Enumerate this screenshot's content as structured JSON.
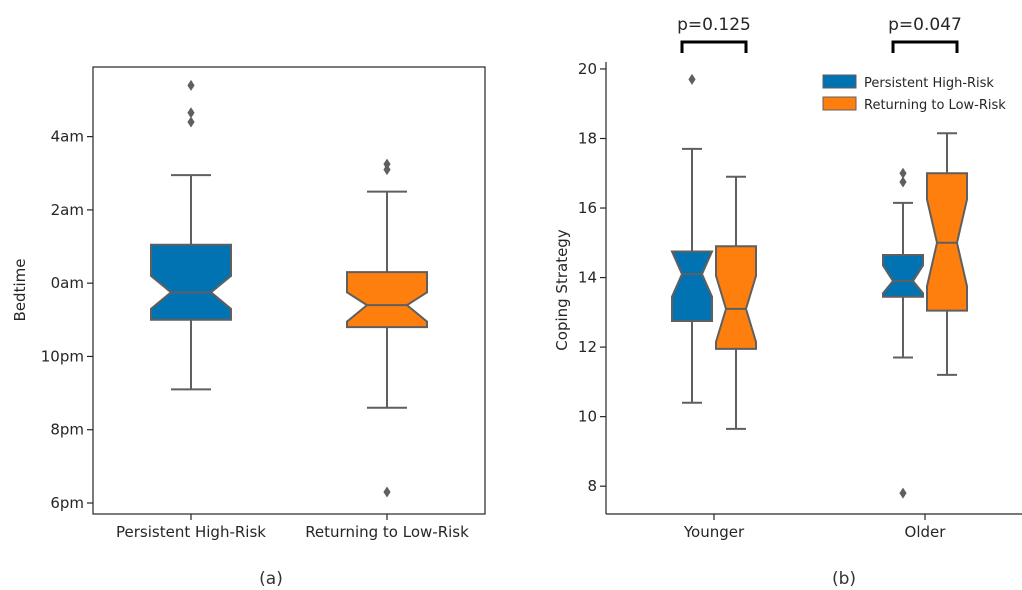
{
  "figure": {
    "captions": [
      "(a)",
      "(b)"
    ]
  },
  "colors": {
    "persistent_high_risk": "#0173b2",
    "returning_to_low_risk": "#ff7f0e",
    "edge": "#5f5f5f",
    "axis": "#262626"
  },
  "chart_data": [
    {
      "type": "box",
      "panel": "(a)",
      "notched": true,
      "xlabel": "",
      "ylabel": "Bedtime",
      "categories": [
        "Persistent High-Risk",
        "Returning to Low-Risk"
      ],
      "y_unit": "hours relative to midnight",
      "ylim": [
        -6.3,
        5.9
      ],
      "yticks": [
        {
          "value": -6,
          "label": "6pm"
        },
        {
          "value": -4,
          "label": "8pm"
        },
        {
          "value": -2,
          "label": "10pm"
        },
        {
          "value": 0,
          "label": "0am"
        },
        {
          "value": 2,
          "label": "2am"
        },
        {
          "value": 4,
          "label": "4am"
        }
      ],
      "boxes": [
        {
          "category": "Persistent High-Risk",
          "whisker_low": -2.9,
          "q1": -1.0,
          "notch_low": -0.7,
          "median": -0.25,
          "notch_high": 0.2,
          "q3": 1.05,
          "whisker_high": 2.95,
          "outliers": [
            4.4,
            4.65,
            5.4
          ]
        },
        {
          "category": "Returning to Low-Risk",
          "whisker_low": -3.4,
          "q1": -1.2,
          "notch_low": -1.05,
          "median": -0.6,
          "notch_high": -0.25,
          "q3": 0.3,
          "whisker_high": 2.5,
          "outliers": [
            -5.7,
            3.1,
            3.25
          ]
        }
      ]
    },
    {
      "type": "box",
      "panel": "(b)",
      "notched": true,
      "xlabel": "",
      "ylabel": "Coping Strategy",
      "categories": [
        "Younger",
        "Older"
      ],
      "ylim": [
        7.2,
        20.2
      ],
      "yticks": [
        {
          "value": 8,
          "label": "8"
        },
        {
          "value": 10,
          "label": "10"
        },
        {
          "value": 12,
          "label": "12"
        },
        {
          "value": 14,
          "label": "14"
        },
        {
          "value": 16,
          "label": "16"
        },
        {
          "value": 18,
          "label": "18"
        },
        {
          "value": 20,
          "label": "20"
        }
      ],
      "legend": {
        "position": "top-right",
        "entries": [
          "Persistent High-Risk",
          "Returning to Low-Risk"
        ]
      },
      "series": [
        {
          "name": "Persistent High-Risk",
          "boxes": [
            {
              "category": "Younger",
              "whisker_low": 10.4,
              "q1": 12.75,
              "notch_low": 13.45,
              "median": 14.1,
              "notch_high": 14.75,
              "q3": 14.75,
              "whisker_high": 17.7,
              "outliers": [
                19.7
              ]
            },
            {
              "category": "Older",
              "whisker_low": 11.7,
              "q1": 13.45,
              "notch_low": 13.55,
              "median": 13.9,
              "notch_high": 14.35,
              "q3": 14.65,
              "whisker_high": 16.15,
              "outliers": [
                7.8,
                16.75,
                17.0
              ]
            }
          ]
        },
        {
          "name": "Returning to Low-Risk",
          "boxes": [
            {
              "category": "Younger",
              "whisker_low": 9.65,
              "q1": 11.95,
              "notch_low": 12.15,
              "median": 13.1,
              "notch_high": 14.05,
              "q3": 14.9,
              "whisker_high": 16.9,
              "outliers": []
            },
            {
              "category": "Older",
              "whisker_low": 11.2,
              "q1": 13.05,
              "notch_low": 13.75,
              "median": 15.0,
              "notch_high": 16.25,
              "q3": 17.0,
              "whisker_high": 18.15,
              "outliers": []
            }
          ]
        }
      ],
      "annotations": [
        {
          "category": "Younger",
          "text": "p=0.125"
        },
        {
          "category": "Older",
          "text": "p=0.047"
        }
      ]
    }
  ]
}
